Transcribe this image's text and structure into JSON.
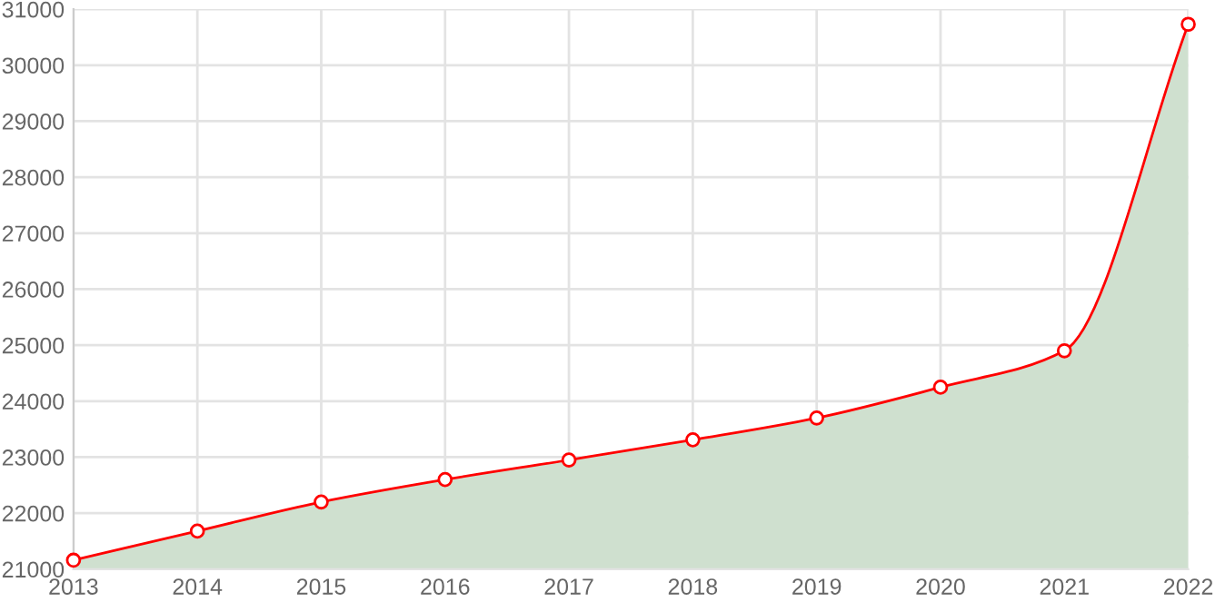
{
  "chart_data": {
    "type": "area",
    "categories": [
      "2013",
      "2014",
      "2015",
      "2016",
      "2017",
      "2018",
      "2019",
      "2020",
      "2021",
      "2022"
    ],
    "series": [
      {
        "color": "#ff0000",
        "values": [
          21160,
          21680,
          22200,
          22600,
          22950,
          23310,
          23700,
          24250,
          24900,
          30730
        ]
      }
    ],
    "ylim": [
      21000,
      31000
    ],
    "yticks": [
      21000,
      22000,
      23000,
      24000,
      25000,
      26000,
      27000,
      28000,
      29000,
      30000,
      31000
    ],
    "grid": true,
    "marker": "circle",
    "line_style": "solid",
    "legend": false
  }
}
